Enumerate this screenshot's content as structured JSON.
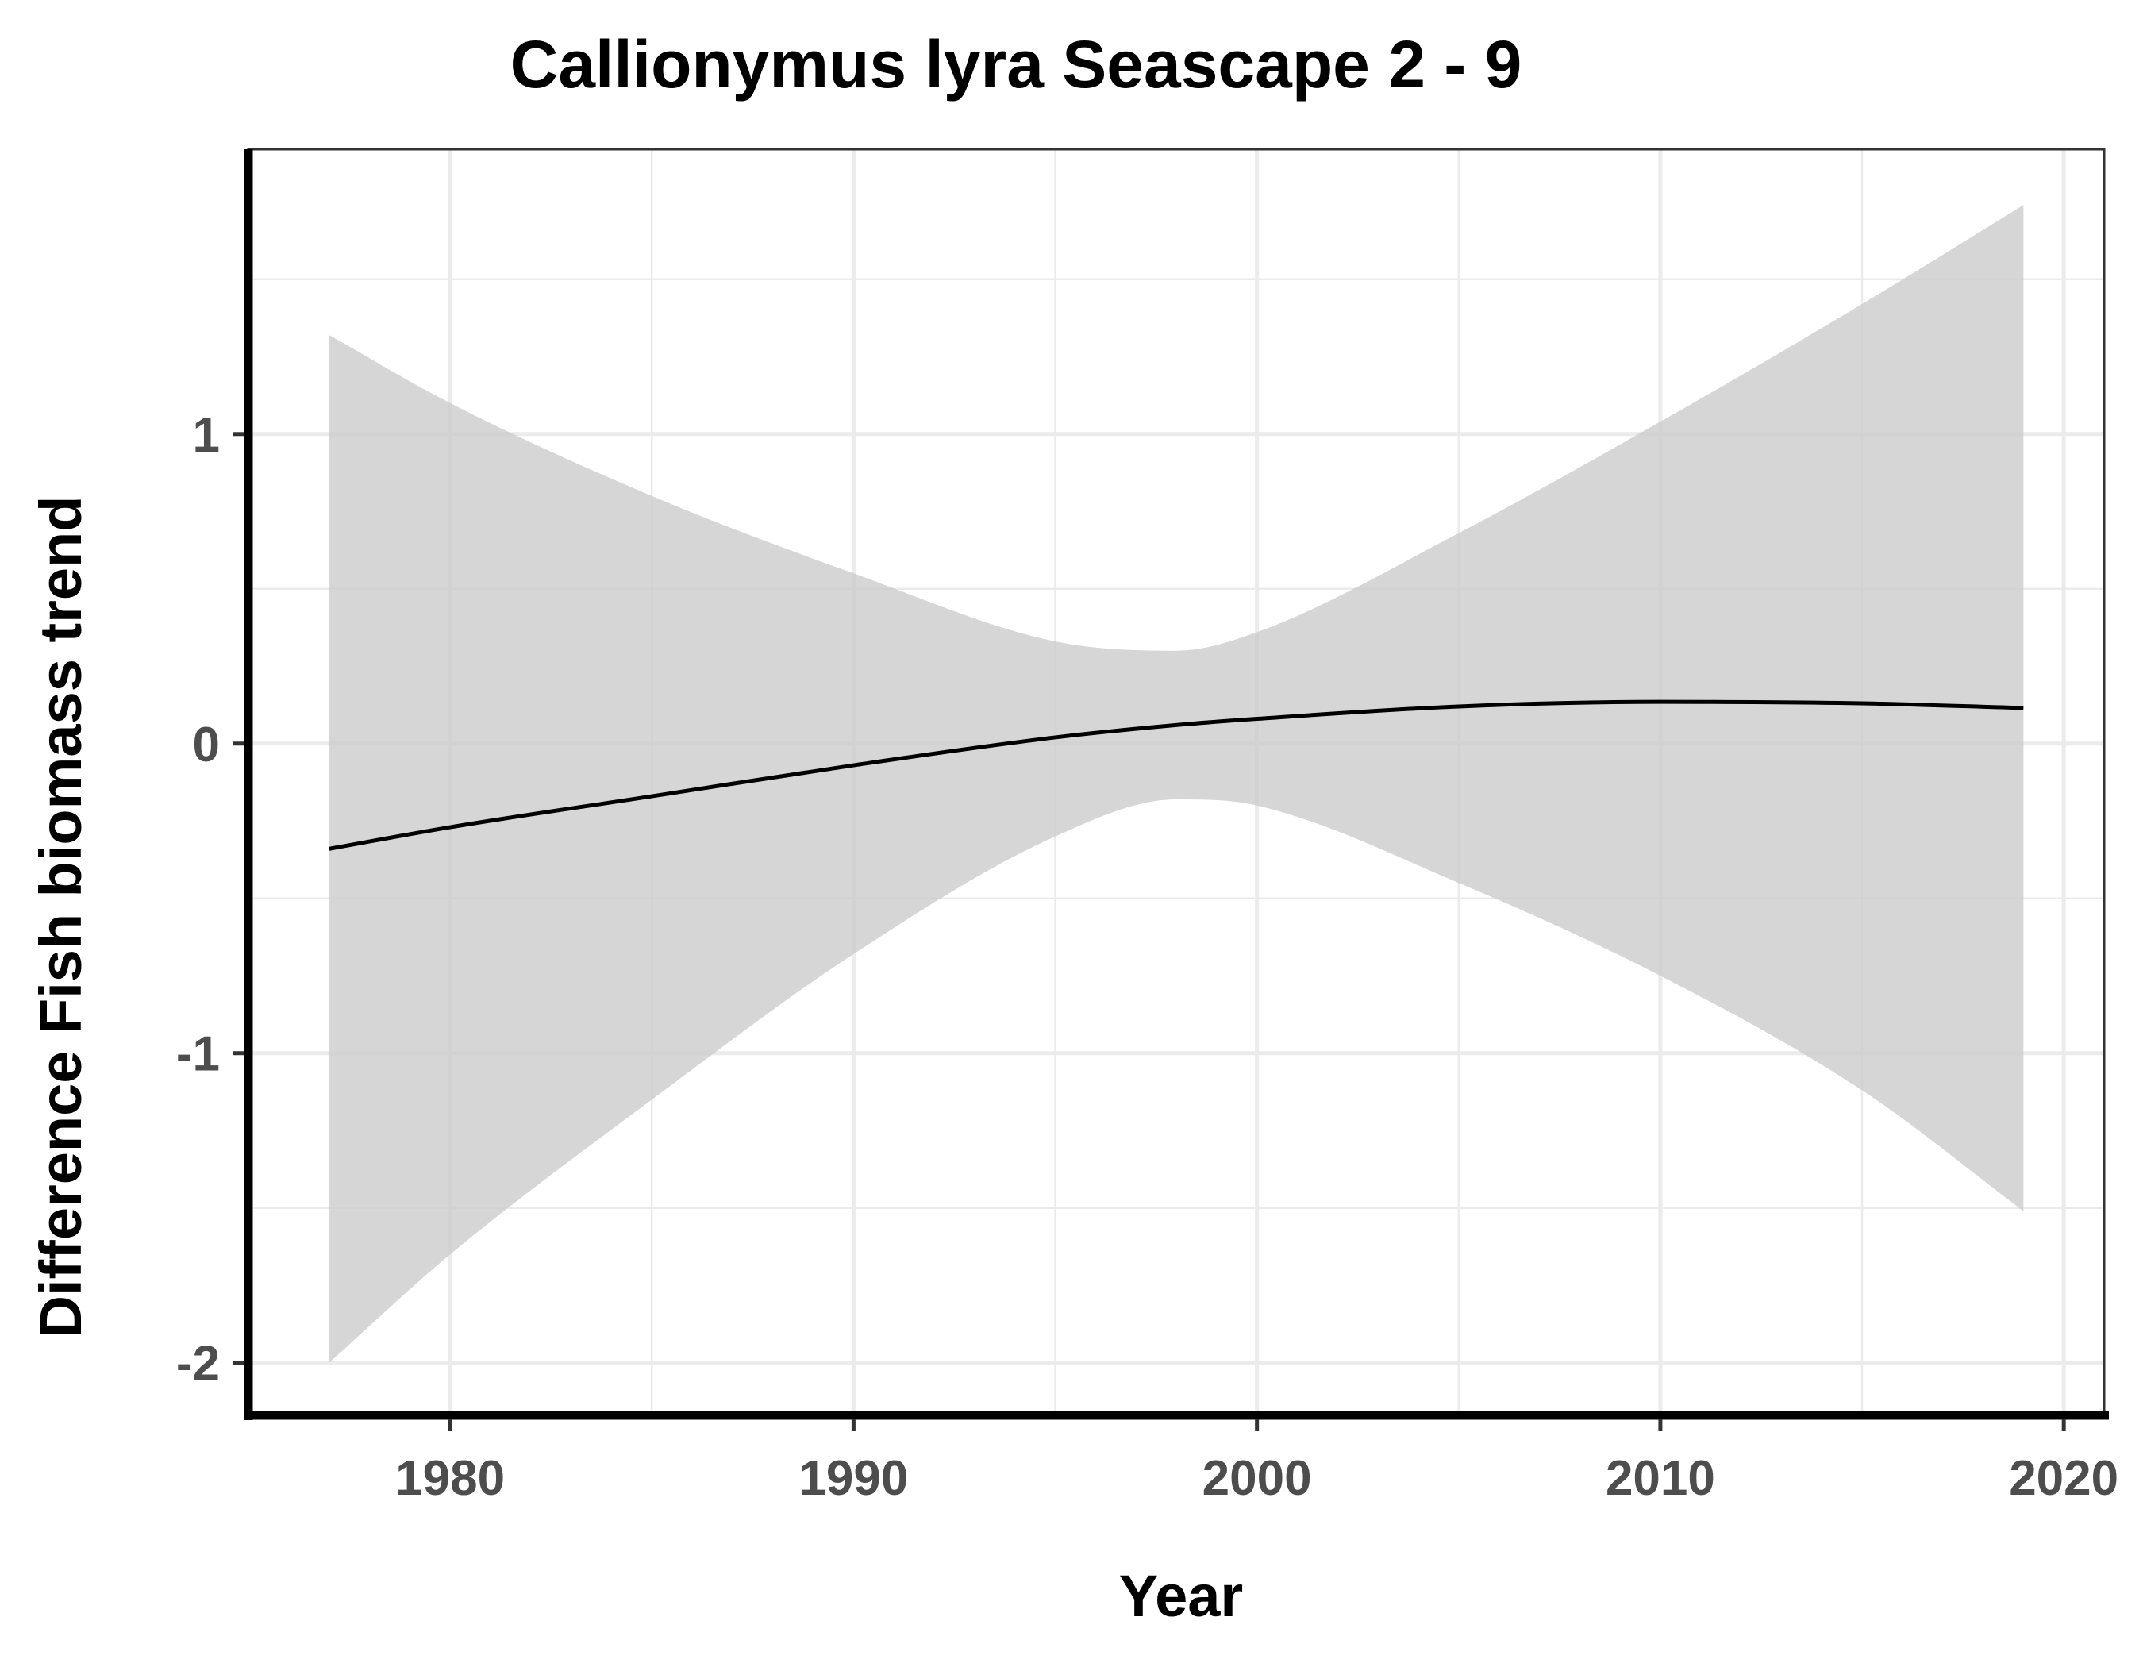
{
  "chart_data": {
    "type": "line",
    "title": "Callionymus lyra Seascape 2 - 9",
    "xlabel": "Year",
    "ylabel": "Difference Fish biomass trend",
    "xlim": [
      1975,
      2021
    ],
    "ylim": [
      -2.17,
      1.92
    ],
    "x_ticks": [
      1980,
      1990,
      2000,
      2010,
      2020
    ],
    "x_tick_labels": [
      "1980",
      "1990",
      "2000",
      "2010",
      "2020"
    ],
    "x_minor_ticks": [
      1985,
      1995,
      2005,
      2015
    ],
    "y_ticks": [
      -2,
      -1,
      0,
      1
    ],
    "y_tick_labels": [
      "-2",
      "-1",
      "0",
      "1"
    ],
    "y_minor_ticks": [
      -1.5,
      -0.5,
      0.5,
      1.5
    ],
    "grid": true,
    "legend": "none",
    "colors": {
      "line": "#000000",
      "ribbon": "#cccccc",
      "grid": "#ebebeb",
      "panel_border": "#333333"
    },
    "series": [
      {
        "x": [
          1977,
          1980,
          1985,
          1990,
          1995,
          1998,
          2000,
          2005,
          2010,
          2015,
          2019
        ],
        "y": [
          -0.34,
          -0.27,
          -0.17,
          -0.07,
          0.02,
          0.06,
          0.08,
          0.12,
          0.135,
          0.13,
          0.115
        ],
        "lower": [
          -2.0,
          -1.65,
          -1.15,
          -0.68,
          -0.3,
          -0.18,
          -0.2,
          -0.45,
          -0.75,
          -1.12,
          -1.51
        ],
        "upper": [
          1.32,
          1.1,
          0.8,
          0.55,
          0.33,
          0.3,
          0.36,
          0.68,
          1.04,
          1.42,
          1.74
        ]
      }
    ]
  }
}
